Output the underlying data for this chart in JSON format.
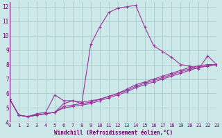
{
  "xlabel": "Windchill (Refroidissement éolien,°C)",
  "background_color": "#cce8e8",
  "grid_color": "#aacccc",
  "line_color": "#993399",
  "xlim": [
    0,
    23
  ],
  "ylim": [
    4,
    12.3
  ],
  "xticks": [
    0,
    1,
    2,
    3,
    4,
    5,
    6,
    7,
    8,
    9,
    10,
    11,
    12,
    13,
    14,
    15,
    16,
    17,
    18,
    19,
    20,
    21,
    22,
    23
  ],
  "yticks": [
    4,
    5,
    6,
    7,
    8,
    9,
    10,
    11,
    12
  ],
  "series": [
    [
      5.6,
      4.5,
      4.4,
      4.6,
      4.7,
      5.9,
      5.5,
      5.5,
      5.3,
      9.4,
      10.6,
      11.6,
      11.9,
      12.0,
      12.1,
      10.6,
      9.3,
      8.9,
      8.5,
      8.0,
      7.9,
      7.7,
      8.6,
      8.0
    ],
    [
      5.6,
      4.5,
      4.4,
      4.5,
      4.6,
      4.7,
      5.3,
      5.5,
      5.4,
      5.5,
      5.6,
      5.8,
      6.0,
      6.3,
      6.6,
      6.8,
      7.0,
      7.2,
      7.4,
      7.6,
      7.8,
      7.9,
      8.0,
      8.0
    ],
    [
      5.6,
      4.5,
      4.4,
      4.5,
      4.6,
      4.7,
      5.1,
      5.2,
      5.3,
      5.4,
      5.6,
      5.8,
      6.0,
      6.2,
      6.5,
      6.7,
      6.9,
      7.1,
      7.3,
      7.5,
      7.7,
      7.8,
      7.9,
      8.0
    ],
    [
      5.6,
      4.5,
      4.4,
      4.5,
      4.6,
      4.7,
      5.0,
      5.1,
      5.2,
      5.3,
      5.5,
      5.7,
      5.9,
      6.1,
      6.4,
      6.6,
      6.8,
      7.0,
      7.2,
      7.4,
      7.6,
      7.8,
      7.9,
      8.0
    ]
  ],
  "marker": "+",
  "markersize": 3.5,
  "linewidth": 0.8,
  "tick_fontsize": 5.0,
  "xlabel_fontsize": 5.5
}
